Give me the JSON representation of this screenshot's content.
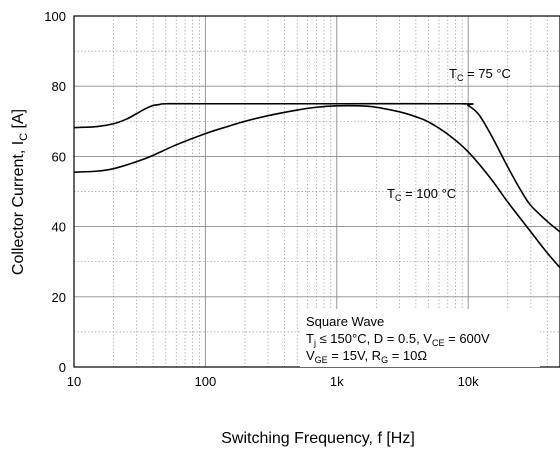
{
  "chart_data": {
    "type": "line",
    "x_scale": "log",
    "xlim": [
      10,
      50000
    ],
    "ylim": [
      0,
      100
    ],
    "xlabel": "Switching Frequency, f [Hz]",
    "ylabel": {
      "main": "Collector Current, I",
      "sub": "C",
      "unit": " [A]"
    },
    "x_ticks": [
      {
        "value": 10,
        "label": "10"
      },
      {
        "value": 100,
        "label": "100"
      },
      {
        "value": 1000,
        "label": "1k"
      },
      {
        "value": 10000,
        "label": "10k"
      }
    ],
    "y_ticks": [
      {
        "value": 0,
        "label": "0"
      },
      {
        "value": 20,
        "label": "20"
      },
      {
        "value": 40,
        "label": "40"
      },
      {
        "value": 60,
        "label": "60"
      },
      {
        "value": 80,
        "label": "80"
      },
      {
        "value": 100,
        "label": "100"
      }
    ],
    "grid": true,
    "legend": "none",
    "series": [
      {
        "label": {
          "pre": "T",
          "sub": "C",
          "post": " = 75 °C"
        },
        "x": [
          10,
          15,
          20,
          25,
          30,
          35,
          40,
          45,
          50,
          100,
          1000,
          9000,
          10000,
          12000,
          15000,
          20000,
          25000,
          30000,
          40000,
          50000
        ],
        "y": [
          68.2,
          68.5,
          69.3,
          70.6,
          72.2,
          73.6,
          74.5,
          74.8,
          75,
          75,
          75,
          75,
          74.5,
          72,
          66,
          57,
          50.5,
          46,
          41.5,
          38.5
        ]
      },
      {
        "label": {
          "pre": "T",
          "sub": "C",
          "post": " = 100 °C"
        },
        "x": [
          10,
          15,
          20,
          30,
          40,
          60,
          100,
          150,
          200,
          300,
          500,
          700,
          1000,
          1500,
          2000,
          3000,
          4000,
          5000,
          7000,
          10000,
          15000,
          20000,
          30000,
          40000,
          50000
        ],
        "y": [
          55.5,
          55.8,
          56.5,
          58.5,
          60.3,
          63.3,
          66.5,
          68.6,
          70,
          71.6,
          73.2,
          74,
          74.4,
          74.4,
          74,
          72.7,
          71.3,
          69.8,
          66.3,
          61.3,
          53.5,
          47,
          38.5,
          32.5,
          28.3
        ]
      }
    ],
    "annotation": {
      "line1": "Square Wave",
      "line2": {
        "a": "T",
        "a_sub": "j",
        "b": " ≤ 150°C, D = 0.5, V",
        "b_sub": "CE",
        "c": " = 600V"
      },
      "line3": {
        "a": "V",
        "a_sub": "GE",
        "b": " = 15V, R",
        "b_sub": "G",
        "c": " = 10Ω"
      }
    }
  }
}
